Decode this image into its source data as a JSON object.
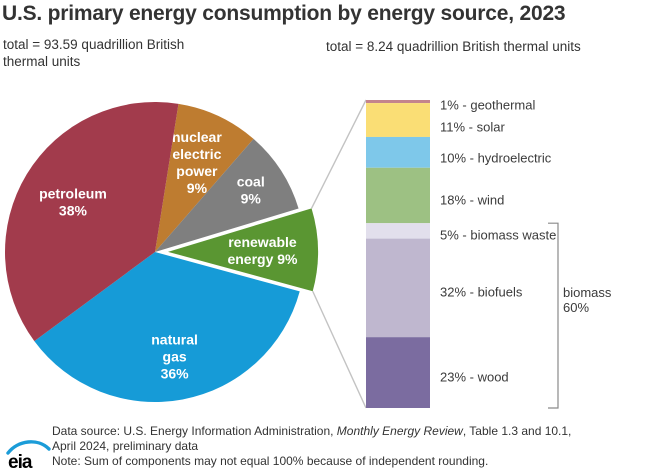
{
  "title": "U.S. primary energy consumption by energy source, 2023",
  "subtitle_left": "total = 93.59 quadrillion British thermal units",
  "subtitle_right": "total = 8.24 quadrillion British thermal units",
  "chart_data": [
    {
      "type": "pie",
      "title": "U.S. primary energy consumption by energy source, 2023",
      "total_label": "total = 93.59 quadrillion British thermal units",
      "unit": "percent",
      "clockwise_from_top": true,
      "slices": [
        {
          "name": "nuclear electric power",
          "pct": 9,
          "color": "#BE7C30",
          "label_lines": [
            "nuclear",
            "electric",
            "power",
            "9%"
          ]
        },
        {
          "name": "coal",
          "pct": 9,
          "color": "#7F7F7F",
          "label_lines": [
            "coal",
            "9%"
          ]
        },
        {
          "name": "renewable energy",
          "pct": 9,
          "color": "#5A9632",
          "exploded": true,
          "label_lines": [
            "renewable",
            "energy 9%"
          ]
        },
        {
          "name": "natural gas",
          "pct": 36,
          "color": "#169BD7",
          "label_lines": [
            "natural",
            "gas",
            "36%"
          ]
        },
        {
          "name": "petroleum",
          "pct": 38,
          "color": "#A23B4C",
          "label_lines": [
            "petroleum",
            "38%"
          ]
        }
      ]
    },
    {
      "type": "bar",
      "subtype": "stacked-vertical-percent",
      "total_label": "total = 8.24 quadrillion British thermal units",
      "unit": "percent",
      "segments_top_to_bottom": [
        {
          "name": "geothermal",
          "pct": 1,
          "color": "#C4848C",
          "label": "1% - geothermal"
        },
        {
          "name": "solar",
          "pct": 11,
          "color": "#FADE75",
          "label": "11% - solar"
        },
        {
          "name": "hydroelectric",
          "pct": 10,
          "color": "#7EC8EA",
          "label": "10% - hydroelectric"
        },
        {
          "name": "wind",
          "pct": 18,
          "color": "#9DC183",
          "label": "18% - wind"
        },
        {
          "name": "biomass waste",
          "pct": 5,
          "color": "#E2DFEC",
          "label": "5% - biomass waste"
        },
        {
          "name": "biofuels",
          "pct": 32,
          "color": "#BFB7CF",
          "label": "32% - biofuels"
        },
        {
          "name": "wood",
          "pct": 23,
          "color": "#7B6CA0",
          "label": "23% - wood"
        }
      ],
      "bracket": {
        "label_lines": [
          "biomass",
          "60%"
        ],
        "pct": 60,
        "start_index": 4,
        "end_index": 6
      }
    }
  ],
  "footer": {
    "source_prefix": "Data source: U.S. Energy Information Administration, ",
    "source_italic": "Monthly Energy Review",
    "source_suffix": ", Table 1.3 and 10.1,",
    "source_line2": "April 2024, preliminary data",
    "note": "Note: Sum of components may not equal 100% because of independent rounding."
  },
  "logo": {
    "text": "eia",
    "accent_color": "#1B9CD8"
  }
}
